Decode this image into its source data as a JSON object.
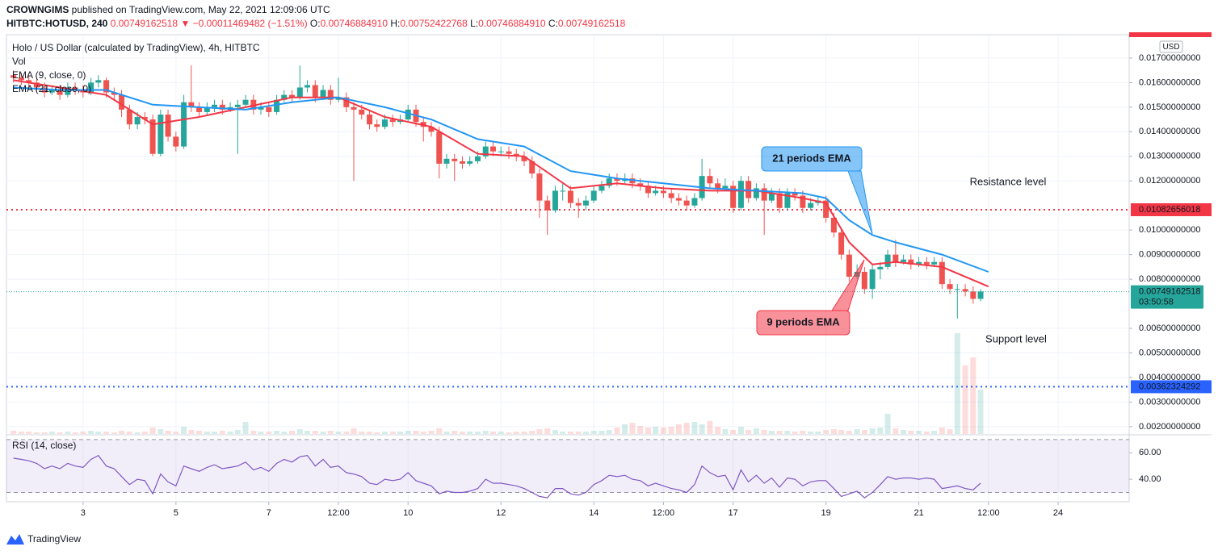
{
  "chart_data": {
    "type": "candlestick",
    "header": {
      "author": "CROWNGIMS",
      "published": "published on TradingView.com, May 22, 2021 12:09:06 UTC",
      "symbol": "HITBTC:HOTUSD, 240",
      "last": "0.00749162518",
      "change": "▼ −0.00011469482 (−1.51%)",
      "quote": [
        {
          "label": "O:",
          "value": "0.00746884910"
        },
        {
          "label": "H:",
          "value": "0.00752422768"
        },
        {
          "label": "L:",
          "value": "0.00746884910"
        },
        {
          "label": "C:",
          "value": "0.00749162518"
        }
      ]
    },
    "title": "Holo / US Dollar (calculated by TradingView), 4h, HITBTC",
    "volume_label": "Vol",
    "currency": "USD",
    "up_color": "#26a69a",
    "down_color": "#ef5350",
    "x": [
      1.5,
      1.67,
      1.83,
      2,
      2.17,
      2.33,
      2.5,
      2.67,
      2.83,
      3,
      3.17,
      3.33,
      3.5,
      3.67,
      3.83,
      4,
      4.17,
      4.33,
      4.5,
      4.67,
      4.83,
      5,
      5.17,
      5.33,
      5.5,
      5.67,
      5.83,
      6,
      6.17,
      6.33,
      6.5,
      6.67,
      6.83,
      7,
      7.17,
      7.33,
      7.5,
      7.67,
      7.83,
      8,
      8.17,
      8.33,
      8.5,
      8.67,
      8.83,
      9,
      9.17,
      9.33,
      9.5,
      9.67,
      9.83,
      10,
      10.17,
      10.33,
      10.5,
      10.67,
      10.83,
      11,
      11.17,
      11.33,
      11.5,
      11.67,
      11.83,
      12,
      12.17,
      12.33,
      12.5,
      12.67,
      12.83,
      13,
      13.17,
      13.33,
      13.5,
      13.67,
      13.83,
      14,
      14.17,
      14.33,
      14.5,
      14.67,
      14.83,
      15,
      15.17,
      15.33,
      15.5,
      15.67,
      15.83,
      16,
      16.17,
      16.33,
      16.5,
      16.67,
      16.83,
      17,
      17.17,
      17.33,
      17.5,
      17.67,
      17.83,
      18,
      18.17,
      18.33,
      18.5,
      18.67,
      18.83,
      19,
      19.17,
      19.33,
      19.5,
      19.67,
      19.83,
      20,
      20.17,
      20.33,
      20.5,
      20.67,
      20.83,
      21,
      21.17,
      21.33,
      21.5,
      21.67,
      21.83,
      22,
      22.17,
      22.33
    ],
    "ohlc": [
      [
        0.0163,
        0.0165,
        0.016,
        0.0162
      ],
      [
        0.0162,
        0.0164,
        0.0159,
        0.0161
      ],
      [
        0.0161,
        0.0163,
        0.0158,
        0.016
      ],
      [
        0.016,
        0.0162,
        0.0156,
        0.0158
      ],
      [
        0.0158,
        0.016,
        0.0154,
        0.0156
      ],
      [
        0.0156,
        0.0159,
        0.0155,
        0.0157
      ],
      [
        0.0157,
        0.0159,
        0.0153,
        0.0155
      ],
      [
        0.0155,
        0.016,
        0.0154,
        0.0158
      ],
      [
        0.0158,
        0.016,
        0.0155,
        0.0157
      ],
      [
        0.0157,
        0.0159,
        0.0154,
        0.0156
      ],
      [
        0.0156,
        0.0162,
        0.0155,
        0.016
      ],
      [
        0.016,
        0.0163,
        0.0158,
        0.0161
      ],
      [
        0.0161,
        0.0162,
        0.0154,
        0.0156
      ],
      [
        0.0156,
        0.0158,
        0.0153,
        0.0155
      ],
      [
        0.0155,
        0.0157,
        0.0146,
        0.0149
      ],
      [
        0.0149,
        0.0151,
        0.0141,
        0.0143
      ],
      [
        0.0143,
        0.0148,
        0.0141,
        0.0146
      ],
      [
        0.0146,
        0.0148,
        0.0143,
        0.0145
      ],
      [
        0.0145,
        0.0147,
        0.013,
        0.0131
      ],
      [
        0.0131,
        0.0149,
        0.013,
        0.0147
      ],
      [
        0.0147,
        0.0149,
        0.0136,
        0.0138
      ],
      [
        0.0138,
        0.014,
        0.0132,
        0.0134
      ],
      [
        0.0134,
        0.0155,
        0.0133,
        0.0152
      ],
      [
        0.0152,
        0.0167,
        0.0148,
        0.015
      ],
      [
        0.015,
        0.0152,
        0.0146,
        0.0148
      ],
      [
        0.0148,
        0.0152,
        0.0147,
        0.015
      ],
      [
        0.015,
        0.0153,
        0.0148,
        0.0151
      ],
      [
        0.0151,
        0.0153,
        0.0147,
        0.0149
      ],
      [
        0.0149,
        0.0152,
        0.0148,
        0.015
      ],
      [
        0.015,
        0.0153,
        0.0131,
        0.0151
      ],
      [
        0.0151,
        0.0155,
        0.015,
        0.0153
      ],
      [
        0.0153,
        0.0155,
        0.0147,
        0.0149
      ],
      [
        0.0149,
        0.0152,
        0.0147,
        0.015
      ],
      [
        0.015,
        0.0152,
        0.0146,
        0.0148
      ],
      [
        0.0148,
        0.0155,
        0.0147,
        0.0153
      ],
      [
        0.0153,
        0.0157,
        0.0152,
        0.0155
      ],
      [
        0.0155,
        0.0157,
        0.0152,
        0.0154
      ],
      [
        0.0154,
        0.0167,
        0.0153,
        0.0158
      ],
      [
        0.0158,
        0.0161,
        0.0156,
        0.0159
      ],
      [
        0.0159,
        0.0161,
        0.0152,
        0.0154
      ],
      [
        0.0154,
        0.0159,
        0.0153,
        0.0157
      ],
      [
        0.0157,
        0.0159,
        0.0151,
        0.0153
      ],
      [
        0.0153,
        0.0162,
        0.0152,
        0.0154
      ],
      [
        0.0154,
        0.0156,
        0.0148,
        0.015
      ],
      [
        0.015,
        0.0152,
        0.012,
        0.0149
      ],
      [
        0.0149,
        0.0151,
        0.0145,
        0.0147
      ],
      [
        0.0147,
        0.0149,
        0.0141,
        0.0143
      ],
      [
        0.0143,
        0.0145,
        0.014,
        0.0142
      ],
      [
        0.0142,
        0.0147,
        0.0141,
        0.0145
      ],
      [
        0.0145,
        0.0147,
        0.0142,
        0.0144
      ],
      [
        0.0144,
        0.0147,
        0.0143,
        0.0145
      ],
      [
        0.0145,
        0.0151,
        0.0144,
        0.0149
      ],
      [
        0.0149,
        0.0151,
        0.0142,
        0.0144
      ],
      [
        0.0144,
        0.0146,
        0.0136,
        0.0142
      ],
      [
        0.0142,
        0.0144,
        0.0138,
        0.014
      ],
      [
        0.014,
        0.0142,
        0.0121,
        0.0127
      ],
      [
        0.0127,
        0.0131,
        0.0125,
        0.0129
      ],
      [
        0.0129,
        0.0131,
        0.012,
        0.0128
      ],
      [
        0.0128,
        0.013,
        0.0125,
        0.0127
      ],
      [
        0.0127,
        0.013,
        0.0126,
        0.0128
      ],
      [
        0.0128,
        0.0132,
        0.0127,
        0.013
      ],
      [
        0.013,
        0.0136,
        0.0129,
        0.0134
      ],
      [
        0.0134,
        0.0136,
        0.013,
        0.0132
      ],
      [
        0.0132,
        0.0134,
        0.013,
        0.0132
      ],
      [
        0.0132,
        0.0134,
        0.0129,
        0.0131
      ],
      [
        0.0131,
        0.0133,
        0.0128,
        0.013
      ],
      [
        0.013,
        0.0132,
        0.0126,
        0.0128
      ],
      [
        0.0128,
        0.013,
        0.0121,
        0.0123
      ],
      [
        0.0123,
        0.0125,
        0.0105,
        0.0112
      ],
      [
        0.0112,
        0.0114,
        0.0098,
        0.0108
      ],
      [
        0.0108,
        0.0118,
        0.0107,
        0.0116
      ],
      [
        0.0116,
        0.0119,
        0.0112,
        0.0116
      ],
      [
        0.0116,
        0.0118,
        0.0109,
        0.0111
      ],
      [
        0.0111,
        0.0113,
        0.0105,
        0.011
      ],
      [
        0.011,
        0.0114,
        0.0108,
        0.0112
      ],
      [
        0.0112,
        0.0118,
        0.0111,
        0.0116
      ],
      [
        0.0116,
        0.012,
        0.0115,
        0.0118
      ],
      [
        0.0118,
        0.0123,
        0.0117,
        0.0121
      ],
      [
        0.0121,
        0.0123,
        0.0118,
        0.012
      ],
      [
        0.012,
        0.0123,
        0.0119,
        0.0121
      ],
      [
        0.0121,
        0.0123,
        0.0117,
        0.0119
      ],
      [
        0.0119,
        0.0121,
        0.0116,
        0.0118
      ],
      [
        0.0118,
        0.012,
        0.0113,
        0.0115
      ],
      [
        0.0115,
        0.0118,
        0.0114,
        0.0116
      ],
      [
        0.0116,
        0.0118,
        0.0113,
        0.0115
      ],
      [
        0.0115,
        0.0117,
        0.0111,
        0.0113
      ],
      [
        0.0113,
        0.0115,
        0.011,
        0.0112
      ],
      [
        0.0112,
        0.0114,
        0.0108,
        0.011
      ],
      [
        0.011,
        0.0115,
        0.0109,
        0.0113
      ],
      [
        0.0113,
        0.0129,
        0.0112,
        0.0122
      ],
      [
        0.0122,
        0.0125,
        0.0117,
        0.0119
      ],
      [
        0.0119,
        0.0121,
        0.0115,
        0.0117
      ],
      [
        0.0117,
        0.0121,
        0.0116,
        0.0118
      ],
      [
        0.0118,
        0.012,
        0.0107,
        0.0109
      ],
      [
        0.0109,
        0.0122,
        0.0108,
        0.012
      ],
      [
        0.012,
        0.0122,
        0.0111,
        0.0113
      ],
      [
        0.0113,
        0.0119,
        0.0112,
        0.0117
      ],
      [
        0.0117,
        0.0119,
        0.0098,
        0.0112
      ],
      [
        0.0112,
        0.0117,
        0.0111,
        0.0115
      ],
      [
        0.0115,
        0.0117,
        0.0107,
        0.0109
      ],
      [
        0.0109,
        0.0117,
        0.0108,
        0.0115
      ],
      [
        0.0115,
        0.0117,
        0.0112,
        0.0114
      ],
      [
        0.0114,
        0.0116,
        0.0107,
        0.0109
      ],
      [
        0.0109,
        0.0113,
        0.0108,
        0.0111
      ],
      [
        0.0111,
        0.0114,
        0.011,
        0.0112
      ],
      [
        0.0112,
        0.0114,
        0.0103,
        0.0105
      ],
      [
        0.0105,
        0.0107,
        0.0097,
        0.0099
      ],
      [
        0.0099,
        0.0101,
        0.0088,
        0.009
      ],
      [
        0.009,
        0.0092,
        0.0079,
        0.0081
      ],
      [
        0.0081,
        0.0086,
        0.008,
        0.0083
      ],
      [
        0.0083,
        0.0085,
        0.0074,
        0.0076
      ],
      [
        0.0076,
        0.0086,
        0.0072,
        0.0084
      ],
      [
        0.0084,
        0.0087,
        0.008,
        0.0085
      ],
      [
        0.0085,
        0.0092,
        0.0084,
        0.009
      ],
      [
        0.009,
        0.0096,
        0.0085,
        0.0087
      ],
      [
        0.0087,
        0.009,
        0.0086,
        0.0088
      ],
      [
        0.0088,
        0.009,
        0.0084,
        0.0086
      ],
      [
        0.0086,
        0.0089,
        0.0085,
        0.0087
      ],
      [
        0.0087,
        0.0089,
        0.0084,
        0.0086
      ],
      [
        0.0086,
        0.0089,
        0.0085,
        0.0087
      ],
      [
        0.0087,
        0.0089,
        0.0076,
        0.0078
      ],
      [
        0.0078,
        0.008,
        0.0074,
        0.0076
      ],
      [
        0.0076,
        0.0078,
        0.0064,
        0.0076
      ],
      [
        0.0076,
        0.0078,
        0.0073,
        0.0075
      ],
      [
        0.0075,
        0.0077,
        0.007,
        0.0072
      ],
      [
        0.0072,
        0.0076,
        0.0071,
        0.0075
      ]
    ],
    "volume": [
      4,
      3,
      3,
      2,
      2,
      3,
      2,
      3,
      2,
      3,
      4,
      3,
      3,
      2,
      4,
      3,
      2,
      3,
      8,
      6,
      4,
      3,
      9,
      5,
      4,
      3,
      3,
      4,
      3,
      5,
      15,
      4,
      3,
      3,
      4,
      3,
      4,
      6,
      4,
      4,
      3,
      4,
      3,
      3,
      7,
      3,
      3,
      2,
      3,
      3,
      3,
      4,
      4,
      3,
      4,
      7,
      3,
      4,
      3,
      3,
      3,
      4,
      3,
      3,
      2,
      3,
      3,
      4,
      6,
      7,
      5,
      3,
      3,
      3,
      3,
      4,
      4,
      5,
      8,
      12,
      14,
      10,
      8,
      9,
      8,
      9,
      12,
      14,
      15,
      12,
      16,
      9,
      6,
      5,
      9,
      5,
      7,
      5,
      4,
      4,
      4,
      3,
      4,
      3,
      3,
      5,
      6,
      5,
      4,
      6,
      5,
      7,
      8,
      25,
      7,
      5,
      4,
      4,
      3,
      4,
      8,
      6,
      125,
      85,
      95,
      55
    ],
    "vlim": [
      0,
      150
    ],
    "series": [
      {
        "name": "EMA (9, close, 0)",
        "color": "#f23645",
        "x": [
          1.5,
          2.5,
          3.5,
          4.5,
          5.5,
          6.5,
          7.5,
          8.5,
          9.5,
          10.5,
          11.5,
          12.5,
          13.5,
          14.5,
          15.5,
          16.5,
          17.5,
          18.5,
          19,
          19.5,
          20,
          20.5,
          21.5,
          22.5
        ],
        "values": [
          0.0161,
          0.0158,
          0.0155,
          0.0143,
          0.0146,
          0.015,
          0.0154,
          0.0154,
          0.0146,
          0.0142,
          0.0131,
          0.013,
          0.0117,
          0.0119,
          0.0117,
          0.0116,
          0.0116,
          0.0113,
          0.0111,
          0.0095,
          0.0086,
          0.0087,
          0.0085,
          0.0077
        ]
      },
      {
        "name": "EMA (21, close, 0)",
        "color": "#2196f3",
        "x": [
          1.5,
          2.5,
          3.5,
          4.5,
          5.5,
          6.5,
          7.5,
          8.5,
          9.5,
          10.5,
          11.5,
          12.5,
          13.5,
          14.5,
          15.5,
          16.5,
          17.5,
          18.5,
          19,
          19.5,
          20,
          20.5,
          21.5,
          22.5
        ],
        "values": [
          0.0158,
          0.0157,
          0.0157,
          0.0151,
          0.015,
          0.0149,
          0.0152,
          0.0154,
          0.015,
          0.0145,
          0.0137,
          0.0134,
          0.0124,
          0.0121,
          0.0119,
          0.0117,
          0.0116,
          0.0115,
          0.0113,
          0.0104,
          0.0098,
          0.0095,
          0.009,
          0.0083
        ]
      }
    ],
    "xlim": [
      1.35,
      25.53
    ],
    "xticks": [
      3,
      5,
      7,
      {
        "value": 8.5,
        "label": "12:00"
      },
      10,
      12,
      14,
      {
        "value": 15.5,
        "label": "12:00"
      },
      17,
      19,
      21,
      {
        "value": 22.5,
        "label": "12:00"
      },
      24
    ],
    "ylim": [
      0.0017,
      0.01795
    ],
    "yticks": [
      {
        "value": 0.017,
        "label": "0.01700000000"
      },
      {
        "value": 0.016,
        "label": "0.01600000000"
      },
      {
        "value": 0.015,
        "label": "0.01500000000"
      },
      {
        "value": 0.014,
        "label": "0.01400000000"
      },
      {
        "value": 0.013,
        "label": "0.01300000000"
      },
      {
        "value": 0.012,
        "label": "0.01200000000"
      },
      {
        "value": 0.01,
        "label": "0.01000000000"
      },
      {
        "value": 0.009,
        "label": "0.00900000000"
      },
      {
        "value": 0.008,
        "label": "0.00800000000"
      },
      {
        "value": 0.006,
        "label": "0.00600000000"
      },
      {
        "value": 0.005,
        "label": "0.00500000000"
      },
      {
        "value": 0.004,
        "label": "0.00400000000"
      },
      {
        "value": 0.003,
        "label": "0.00300000000"
      },
      {
        "value": 0.002,
        "label": "0.00200000000"
      }
    ],
    "grid": true,
    "levels": [
      {
        "name": "Resistance level",
        "value": 0.01082656018,
        "color": "#f23645"
      },
      {
        "name": "Support level",
        "value": 0.00362324292,
        "color": "#2962ff"
      }
    ],
    "last_price": 0.00749162518,
    "countdown": "03:50:58",
    "annotations": [
      {
        "text": "21 periods EMA",
        "color": "#2196f3"
      },
      {
        "text": "9 periods EMA",
        "color": "#f23645"
      }
    ],
    "rsi": {
      "name": "RSI (14, close)",
      "color": "#7e57c2",
      "values": [
        56,
        55,
        54,
        52,
        48,
        50,
        48,
        52,
        50,
        49,
        55,
        58,
        50,
        48,
        42,
        36,
        40,
        39,
        29,
        44,
        38,
        35,
        50,
        48,
        46,
        49,
        51,
        48,
        49,
        50,
        53,
        47,
        49,
        46,
        52,
        55,
        53,
        57,
        58,
        50,
        55,
        49,
        50,
        45,
        44,
        42,
        37,
        36,
        40,
        39,
        40,
        45,
        39,
        37,
        35,
        29,
        31,
        30,
        30,
        31,
        33,
        40,
        37,
        37,
        36,
        35,
        33,
        30,
        27,
        26,
        33,
        33,
        29,
        28,
        30,
        36,
        39,
        43,
        42,
        43,
        40,
        39,
        35,
        37,
        35,
        33,
        32,
        30,
        36,
        50,
        45,
        42,
        43,
        32,
        47,
        38,
        43,
        37,
        41,
        34,
        41,
        40,
        35,
        38,
        39,
        39,
        33,
        27,
        29,
        31,
        26,
        30,
        36,
        42,
        40,
        41,
        41,
        40,
        41,
        40,
        33,
        34,
        35,
        33,
        32,
        37
      ],
      "ylim": [
        23,
        73
      ],
      "yticks": [
        {
          "value": 60,
          "label": "60.00"
        },
        {
          "value": 40,
          "label": "40.00"
        }
      ],
      "bands": [
        30,
        70
      ]
    },
    "footer": "TradingView"
  }
}
